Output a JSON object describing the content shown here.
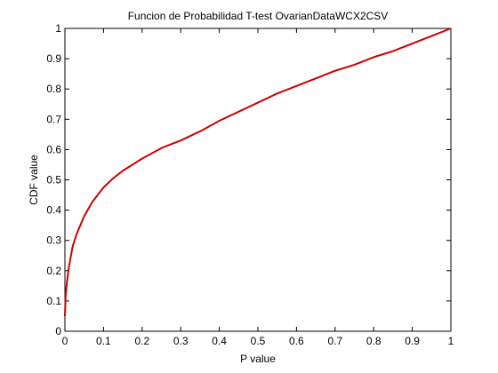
{
  "chart_data": {
    "type": "line",
    "title": "Funcion de Probabilidad T-test OvarianDataWCX2CSV",
    "xlabel": "P value",
    "ylabel": "CDF value",
    "xlim": [
      0,
      1
    ],
    "ylim": [
      0,
      1
    ],
    "x_ticks": [
      "0",
      "0.1",
      "0.2",
      "0.3",
      "0.4",
      "0.5",
      "0.6",
      "0.7",
      "0.8",
      "0.9",
      "1"
    ],
    "y_ticks": [
      "0",
      "0.1",
      "0.2",
      "0.3",
      "0.4",
      "0.5",
      "0.6",
      "0.7",
      "0.8",
      "0.9",
      "1"
    ],
    "grid": false,
    "series_color": "#cc0000",
    "series": [
      {
        "x": [
          0,
          0.002,
          0.005,
          0.01,
          0.02,
          0.03,
          0.04,
          0.05,
          0.07,
          0.1,
          0.125,
          0.15,
          0.2,
          0.25,
          0.3,
          0.35,
          0.4,
          0.45,
          0.5,
          0.55,
          0.6,
          0.65,
          0.7,
          0.75,
          0.8,
          0.85,
          0.9,
          0.95,
          1.0
        ],
        "y": [
          0.05,
          0.12,
          0.16,
          0.21,
          0.28,
          0.32,
          0.35,
          0.38,
          0.425,
          0.475,
          0.505,
          0.53,
          0.57,
          0.605,
          0.63,
          0.66,
          0.695,
          0.725,
          0.755,
          0.785,
          0.81,
          0.835,
          0.86,
          0.88,
          0.905,
          0.925,
          0.95,
          0.975,
          1.0
        ]
      }
    ]
  }
}
